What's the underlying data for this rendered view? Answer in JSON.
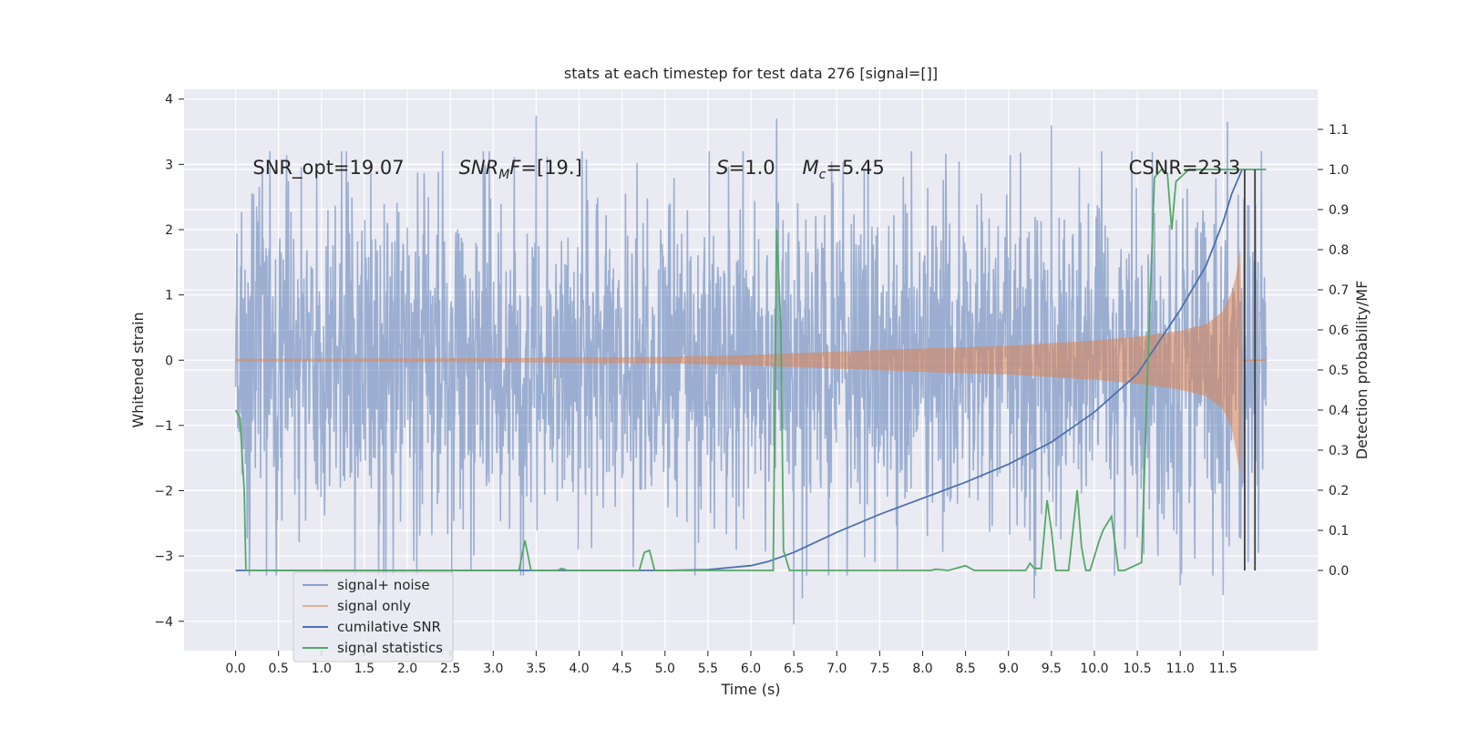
{
  "chart_data": {
    "type": "line",
    "title": "stats at each timestep for test data 276 [signal=[]]",
    "xlabel": "Time (s)",
    "ylabel_left": "Whitened strain",
    "ylabel_right": "Detection probability/MF",
    "xlim": [
      -0.6,
      12.6
    ],
    "ylim_left": [
      -4.45,
      4.15
    ],
    "ylim_right": [
      -0.2,
      1.2
    ],
    "grid": true,
    "legend_placement": "lower-left",
    "x_ticks": [
      "0.0",
      "0.5",
      "1.0",
      "1.5",
      "2.0",
      "2.5",
      "3.0",
      "3.5",
      "4.0",
      "4.5",
      "5.0",
      "5.5",
      "6.0",
      "6.5",
      "7.0",
      "7.5",
      "8.0",
      "8.5",
      "9.0",
      "9.5",
      "10.0",
      "10.5",
      "11.0",
      "11.5"
    ],
    "x_tick_values": [
      0.0,
      0.5,
      1.0,
      1.5,
      2.0,
      2.5,
      3.0,
      3.5,
      4.0,
      4.5,
      5.0,
      5.5,
      6.0,
      6.5,
      7.0,
      7.5,
      8.0,
      8.5,
      9.0,
      9.5,
      10.0,
      10.5,
      11.0,
      11.5
    ],
    "y_left_ticks": [
      "4",
      "3",
      "2",
      "1",
      "0",
      "−1",
      "−2",
      "−3",
      "−4"
    ],
    "y_left_tick_values": [
      4,
      3,
      2,
      1,
      0,
      -1,
      -2,
      -3,
      -4
    ],
    "y_right_ticks": [
      "1.1",
      "1.0",
      "0.9",
      "0.8",
      "0.7",
      "0.6",
      "0.5",
      "0.4",
      "0.3",
      "0.2",
      "0.1",
      "0.0"
    ],
    "y_right_tick_values": [
      1.1,
      1.0,
      0.9,
      0.8,
      0.7,
      0.6,
      0.5,
      0.4,
      0.3,
      0.2,
      0.1,
      0.0
    ],
    "annotations": [
      {
        "parts": [
          {
            "t": "SNR_opt=19.07"
          }
        ],
        "x": 0.2,
        "y": 2.85
      },
      {
        "parts": [
          {
            "t": "SNR",
            "i": true
          },
          {
            "t": "M",
            "i": true,
            "sub": true
          },
          {
            "t": "F",
            "i": true
          },
          {
            "t": "=[19.]"
          }
        ],
        "x": 2.6,
        "y": 2.85
      },
      {
        "parts": [
          {
            "t": "S",
            "i": true
          },
          {
            "t": "=1.0"
          }
        ],
        "x": 5.6,
        "y": 2.85
      },
      {
        "parts": [
          {
            "t": "M",
            "i": true
          },
          {
            "t": "c",
            "i": true,
            "sub": true
          },
          {
            "t": "=5.45"
          }
        ],
        "x": 6.6,
        "y": 2.85
      },
      {
        "parts": [
          {
            "t": "CSNR=23.3"
          }
        ],
        "x": 10.4,
        "y": 2.85
      }
    ],
    "vlines": [
      11.75,
      11.87
    ],
    "series": [
      {
        "name": "signal+ noise",
        "axis": "left",
        "color": "#4c72b0",
        "alpha": 0.5,
        "style": "dense-noise",
        "x_range": [
          0.0,
          12.0
        ],
        "typical_amplitude": 1.7,
        "peak_values": [
          {
            "x": 3.5,
            "y": 3.75
          },
          {
            "x": 6.3,
            "y": 3.7
          },
          {
            "x": 11.55,
            "y": 3.65
          },
          {
            "x": 9.5,
            "y": 3.6
          },
          {
            "x": 6.5,
            "y": -4.05
          },
          {
            "x": 6.6,
            "y": -3.65
          },
          {
            "x": 9.3,
            "y": -3.65
          },
          {
            "x": 11.5,
            "y": -3.6
          },
          {
            "x": 11.0,
            "y": -3.45
          },
          {
            "x": 1.75,
            "y": -3.4
          },
          {
            "x": 3.35,
            "y": -3.3
          }
        ]
      },
      {
        "name": "signal only",
        "axis": "left",
        "color": "#dd8452",
        "alpha": 0.5,
        "style": "chirp-envelope",
        "envelope": {
          "x": [
            0.0,
            3.0,
            5.0,
            6.0,
            7.0,
            8.0,
            9.0,
            10.0,
            10.5,
            11.0,
            11.3,
            11.5,
            11.6,
            11.65,
            11.7,
            11.72
          ],
          "upper": [
            0.02,
            0.03,
            0.05,
            0.08,
            0.13,
            0.18,
            0.22,
            0.3,
            0.36,
            0.45,
            0.55,
            0.75,
            1.05,
            1.3,
            1.75,
            0.0
          ],
          "lower": [
            -0.02,
            -0.03,
            -0.05,
            -0.08,
            -0.13,
            -0.18,
            -0.22,
            -0.3,
            -0.36,
            -0.45,
            -0.55,
            -0.75,
            -1.05,
            -1.4,
            -1.8,
            0.0
          ]
        },
        "after": {
          "x": [
            11.72,
            12.0
          ],
          "y": [
            0.0,
            0.0
          ]
        }
      },
      {
        "name": "cumilative SNR",
        "axis": "right",
        "color": "#4c72b0",
        "x": [
          0.0,
          5.0,
          5.5,
          6.0,
          6.2,
          6.5,
          7.0,
          7.5,
          8.0,
          8.5,
          9.0,
          9.5,
          10.0,
          10.5,
          11.0,
          11.3,
          11.5,
          11.6,
          11.72
        ],
        "y": [
          0.0,
          0.0,
          0.002,
          0.012,
          0.022,
          0.045,
          0.095,
          0.14,
          0.18,
          0.22,
          0.265,
          0.32,
          0.395,
          0.49,
          0.65,
          0.76,
          0.87,
          0.94,
          1.0
        ]
      },
      {
        "name": "signal statistics",
        "axis": "right",
        "color": "#55a868",
        "x": [
          0.0,
          0.05,
          0.1,
          0.12,
          0.15,
          3.3,
          3.37,
          3.44,
          3.75,
          3.8,
          3.86,
          4.7,
          4.76,
          4.82,
          4.88,
          6.26,
          6.3,
          6.35,
          6.38,
          6.45,
          8.1,
          8.15,
          8.3,
          8.5,
          8.6,
          8.7,
          9.2,
          9.25,
          9.3,
          9.38,
          9.45,
          9.5,
          9.55,
          9.6,
          9.7,
          9.8,
          9.85,
          9.9,
          9.95,
          10.05,
          10.1,
          10.2,
          10.28,
          10.35,
          10.55,
          10.62,
          10.7,
          10.78,
          10.85,
          10.9,
          10.95,
          11.0,
          11.1,
          12.0
        ],
        "y": [
          0.4,
          0.38,
          0.2,
          0.0,
          0.0,
          0.0,
          0.075,
          0.0,
          0.0,
          0.005,
          0.0,
          0.0,
          0.045,
          0.05,
          0.0,
          0.0,
          0.85,
          0.6,
          0.05,
          0.0,
          0.0,
          0.003,
          0.0,
          0.012,
          0.0,
          0.0,
          0.0,
          0.018,
          0.005,
          0.005,
          0.175,
          0.1,
          0.0,
          0.0,
          0.0,
          0.2,
          0.06,
          0.0,
          0.0,
          0.07,
          0.1,
          0.135,
          0.0,
          0.0,
          0.02,
          0.5,
          0.98,
          1.0,
          0.99,
          0.85,
          0.97,
          0.98,
          1.0,
          1.0
        ]
      }
    ]
  }
}
